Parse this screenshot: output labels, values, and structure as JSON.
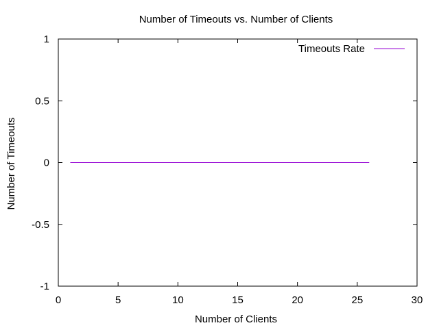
{
  "chart_data": {
    "type": "line",
    "title": "Number of Timeouts vs. Number of Clients",
    "xlabel": "Number of Clients",
    "ylabel": "Number of Timeouts",
    "xlim": [
      0,
      30
    ],
    "ylim": [
      -1,
      1
    ],
    "xticks": [
      0,
      5,
      10,
      15,
      20,
      25,
      30
    ],
    "xtick_labels": [
      "0",
      "5",
      "10",
      "15",
      "20",
      "25",
      "30"
    ],
    "yticks": [
      -1,
      -0.5,
      0,
      0.5,
      1
    ],
    "ytick_labels": [
      "-1",
      "-0.5",
      "0",
      "0.5",
      "1"
    ],
    "grid": false,
    "legend_position": "top-right",
    "series": [
      {
        "name": "Timeouts Rate",
        "color": "#9400d3",
        "x": [
          1,
          2,
          3,
          4,
          5,
          6,
          7,
          8,
          9,
          10,
          11,
          12,
          13,
          14,
          15,
          16,
          17,
          18,
          19,
          20,
          21,
          22,
          23,
          24,
          25,
          26
        ],
        "y": [
          0,
          0,
          0,
          0,
          0,
          0,
          0,
          0,
          0,
          0,
          0,
          0,
          0,
          0,
          0,
          0,
          0,
          0,
          0,
          0,
          0,
          0,
          0,
          0,
          0,
          0
        ]
      }
    ]
  }
}
